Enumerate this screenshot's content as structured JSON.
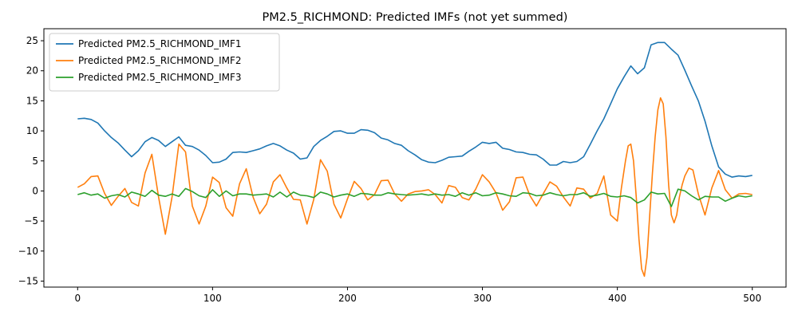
{
  "chart_data": {
    "type": "line",
    "title": "PM2.5_RICHMOND: Predicted IMFs (not yet summed)",
    "xlabel": "",
    "ylabel": "",
    "xlim": [
      -25,
      525
    ],
    "ylim": [
      -16,
      27
    ],
    "xticks": [
      0,
      100,
      200,
      300,
      400,
      500
    ],
    "yticks": [
      -15,
      -10,
      -5,
      0,
      5,
      10,
      15,
      20,
      25
    ],
    "grid": false,
    "legend": "top-left",
    "series": [
      {
        "name": "Predicted PM2.5_RICHMOND_IMF1",
        "color": "#1f77b4",
        "x": [
          0,
          5,
          10,
          15,
          20,
          25,
          30,
          35,
          40,
          45,
          50,
          55,
          60,
          65,
          70,
          75,
          80,
          85,
          90,
          95,
          100,
          105,
          110,
          115,
          120,
          125,
          130,
          135,
          140,
          145,
          150,
          155,
          160,
          165,
          170,
          175,
          180,
          185,
          190,
          195,
          200,
          205,
          210,
          215,
          220,
          225,
          230,
          235,
          240,
          245,
          250,
          255,
          260,
          265,
          270,
          275,
          280,
          285,
          290,
          295,
          300,
          305,
          310,
          315,
          320,
          325,
          330,
          335,
          340,
          345,
          350,
          355,
          360,
          365,
          370,
          375,
          380,
          385,
          390,
          395,
          400,
          405,
          410,
          415,
          420,
          425,
          430,
          435,
          440,
          445,
          450,
          455,
          460,
          465,
          470,
          475,
          480,
          485,
          490,
          495,
          500
        ],
        "y": [
          12,
          12.1,
          11.9,
          11.3,
          10,
          8.9,
          8,
          6.8,
          5.7,
          6.7,
          8.2,
          8.9,
          8.4,
          7.4,
          8.2,
          9,
          7.6,
          7.4,
          6.8,
          5.9,
          4.7,
          4.8,
          5.3,
          6.4,
          6.5,
          6.4,
          6.7,
          7,
          7.5,
          7.9,
          7.5,
          6.8,
          6.3,
          5.3,
          5.5,
          7.4,
          8.4,
          9.1,
          9.9,
          10,
          9.6,
          9.6,
          10.2,
          10.1,
          9.7,
          8.8,
          8.5,
          7.9,
          7.6,
          6.7,
          6,
          5.2,
          4.8,
          4.7,
          5.1,
          5.6,
          5.7,
          5.8,
          6.6,
          7.3,
          8.1,
          7.9,
          8.1,
          7.1,
          6.9,
          6.5,
          6.4,
          6.1,
          6,
          5.3,
          4.3,
          4.3,
          4.9,
          4.7,
          4.9,
          5.7,
          7.8,
          10,
          12,
          14.5,
          17,
          19,
          20.8,
          19.5,
          20.5,
          24.3,
          24.7,
          24.7,
          23.6,
          22.6,
          20.1,
          17.5,
          15,
          11.6,
          7.5,
          4,
          2.8,
          2.3,
          2.5,
          2.4,
          2.6
        ]
      },
      {
        "name": "Predicted PM2.5_RICHMOND_IMF2",
        "color": "#ff7f0e",
        "x": [
          0,
          5,
          10,
          15,
          20,
          25,
          30,
          35,
          40,
          45,
          50,
          55,
          60,
          65,
          70,
          75,
          80,
          85,
          90,
          95,
          100,
          105,
          110,
          115,
          120,
          125,
          130,
          135,
          140,
          145,
          150,
          155,
          160,
          165,
          170,
          175,
          180,
          185,
          190,
          195,
          200,
          205,
          210,
          215,
          220,
          225,
          230,
          235,
          240,
          245,
          250,
          255,
          260,
          265,
          270,
          275,
          280,
          285,
          290,
          295,
          300,
          305,
          310,
          315,
          320,
          325,
          330,
          335,
          340,
          345,
          350,
          355,
          360,
          365,
          370,
          375,
          380,
          385,
          390,
          395,
          400,
          403,
          406,
          408,
          410,
          412,
          414,
          416,
          418,
          420,
          422,
          424,
          426,
          428,
          430,
          432,
          434,
          436,
          438,
          440,
          442,
          444,
          446,
          448,
          450,
          453,
          456,
          460,
          465,
          470,
          475,
          480,
          485,
          490,
          495,
          500
        ],
        "y": [
          0.6,
          1.2,
          2.4,
          2.5,
          -0.4,
          -2.4,
          -0.9,
          0.4,
          -1.9,
          -2.5,
          3,
          6.1,
          -1,
          -7.2,
          -1,
          7.8,
          6.5,
          -2.5,
          -5.5,
          -2.5,
          2.3,
          1.4,
          -2.8,
          -4.2,
          1.2,
          3.7,
          -1,
          -3.8,
          -2.2,
          1.5,
          2.7,
          0.5,
          -1.4,
          -1.5,
          -5.5,
          -1.4,
          5.2,
          3.3,
          -2.2,
          -4.5,
          -1.3,
          1.6,
          0.4,
          -1.5,
          -0.6,
          1.7,
          1.8,
          -0.5,
          -1.7,
          -0.5,
          -0.1,
          0,
          0.2,
          -0.6,
          -2,
          0.9,
          0.6,
          -1.1,
          -1.5,
          0.3,
          2.7,
          1.5,
          -0.3,
          -3.2,
          -1.8,
          2.2,
          2.3,
          -0.7,
          -2.5,
          -0.5,
          1.5,
          0.8,
          -1,
          -2.5,
          0.5,
          0.3,
          -1.2,
          -0.4,
          2.5,
          -4,
          -5,
          0.5,
          5,
          7.5,
          7.8,
          5,
          -1,
          -8,
          -13,
          -14.2,
          -11,
          -4,
          3,
          9,
          13.5,
          15.5,
          14.5,
          9,
          1,
          -4,
          -5.3,
          -4,
          -1,
          1,
          2.5,
          3.8,
          3.5,
          -0.5,
          -4,
          0.5,
          3.4,
          0.2,
          -1.2,
          -0.5,
          -0.4,
          -0.6
        ]
      },
      {
        "name": "Predicted PM2.5_RICHMOND_IMF3",
        "color": "#2ca02c",
        "x": [
          0,
          5,
          10,
          15,
          20,
          25,
          30,
          35,
          40,
          45,
          50,
          55,
          60,
          65,
          70,
          75,
          80,
          85,
          90,
          95,
          100,
          105,
          110,
          115,
          120,
          125,
          130,
          135,
          140,
          145,
          150,
          155,
          160,
          165,
          170,
          175,
          180,
          185,
          190,
          195,
          200,
          205,
          210,
          215,
          220,
          225,
          230,
          235,
          240,
          245,
          250,
          255,
          260,
          265,
          270,
          275,
          280,
          285,
          290,
          295,
          300,
          305,
          310,
          315,
          320,
          325,
          330,
          335,
          340,
          345,
          350,
          355,
          360,
          365,
          370,
          375,
          380,
          385,
          390,
          395,
          400,
          405,
          410,
          415,
          420,
          425,
          430,
          435,
          440,
          445,
          450,
          455,
          460,
          465,
          470,
          475,
          480,
          485,
          490,
          495,
          500
        ],
        "y": [
          -0.6,
          -0.3,
          -0.7,
          -0.5,
          -1.2,
          -0.8,
          -0.6,
          -1,
          -0.2,
          -0.5,
          -0.9,
          0.1,
          -0.7,
          -0.9,
          -0.5,
          -0.9,
          0.4,
          -0.1,
          -0.8,
          -1.1,
          0.2,
          -0.9,
          0,
          -0.8,
          -0.5,
          -0.5,
          -0.7,
          -0.6,
          -0.5,
          -1,
          -0.2,
          -1,
          -0.2,
          -0.7,
          -0.8,
          -1.1,
          -0.2,
          -0.5,
          -1,
          -0.7,
          -0.5,
          -0.9,
          -0.4,
          -0.5,
          -0.7,
          -0.7,
          -0.3,
          -0.5,
          -0.6,
          -0.7,
          -0.6,
          -0.5,
          -0.7,
          -0.5,
          -0.7,
          -0.6,
          -0.9,
          -0.3,
          -0.7,
          -0.3,
          -0.8,
          -0.7,
          -0.3,
          -0.5,
          -0.8,
          -0.9,
          -0.3,
          -0.4,
          -0.8,
          -0.7,
          -0.3,
          -0.6,
          -0.8,
          -0.6,
          -0.6,
          -0.3,
          -0.9,
          -0.7,
          -0.4,
          -0.9,
          -1,
          -0.8,
          -1.1,
          -2,
          -1.5,
          -0.2,
          -0.5,
          -0.4,
          -2.6,
          0.3,
          0,
          -0.8,
          -1.5,
          -0.9,
          -1,
          -1,
          -1.7,
          -1.2,
          -0.8,
          -1,
          -0.8
        ]
      }
    ]
  }
}
